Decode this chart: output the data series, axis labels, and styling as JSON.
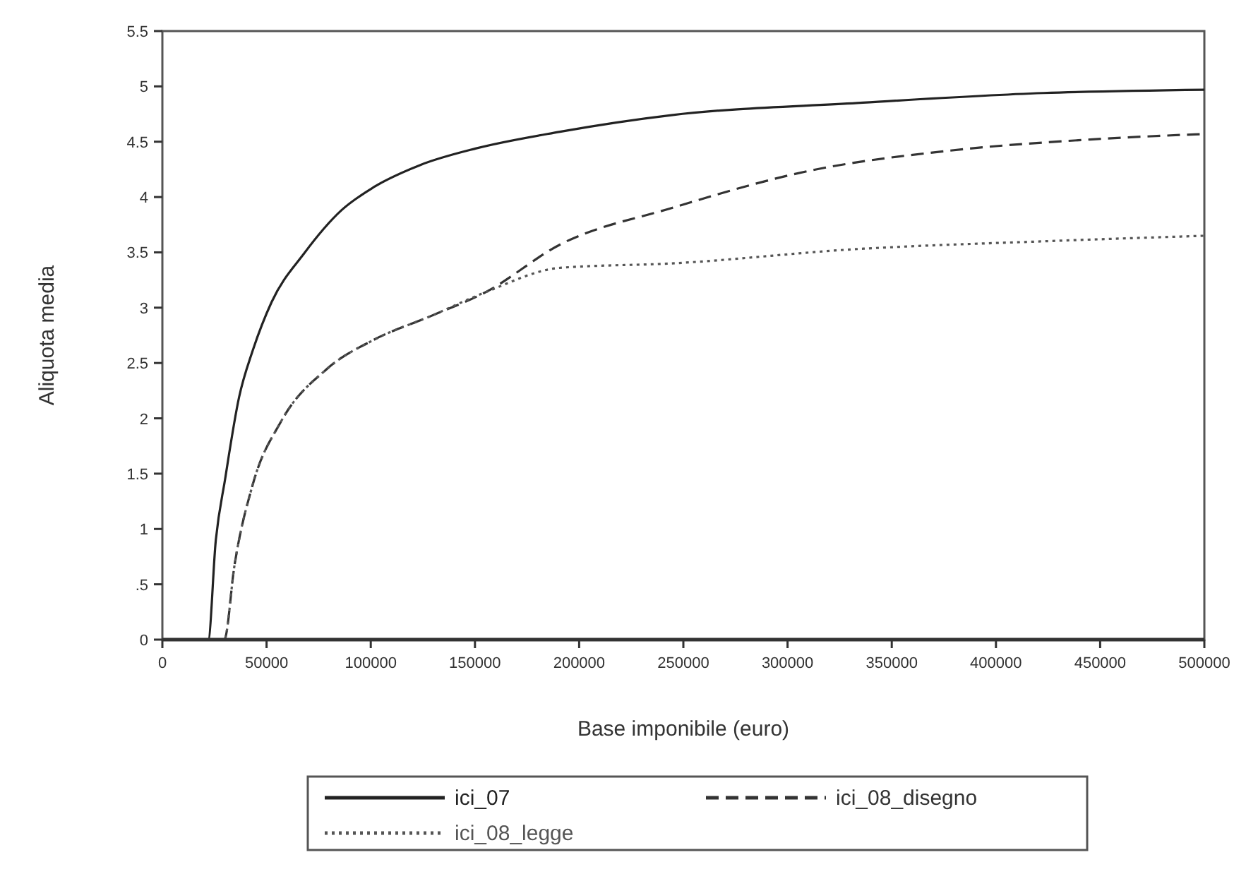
{
  "chart_data": {
    "type": "line",
    "xlabel": "Base imponibile (euro)",
    "ylabel": "Aliquota media",
    "xlim": [
      0,
      500000
    ],
    "xticks": [
      0,
      50000,
      100000,
      150000,
      200000,
      250000,
      300000,
      350000,
      400000,
      450000,
      500000
    ],
    "ylim": [
      0,
      5.5
    ],
    "yticks": [
      0,
      {
        "value": 0.5,
        "label": ".5"
      },
      1,
      1.5,
      2,
      2.5,
      3,
      3.5,
      4,
      4.5,
      5,
      5.5
    ],
    "grid": false,
    "legend": "bottom",
    "series": [
      {
        "name": "ici_07",
        "color": "#222222",
        "line_style": "solid",
        "x": [
          0,
          22000,
          25600,
          30100,
          36800,
          43500,
          52400,
          68000,
          85900,
          101500,
          123800,
          150600,
          190800,
          244300,
          333500,
          422800,
          500000
        ],
        "values": [
          0,
          0,
          0.89,
          1.45,
          2.19,
          2.62,
          3.05,
          3.49,
          3.88,
          4.09,
          4.29,
          4.44,
          4.59,
          4.74,
          4.85,
          4.94,
          4.97
        ]
      },
      {
        "name": "ici_08_disegno",
        "color": "#333333",
        "line_style": "dashed",
        "x": [
          0,
          29700,
          34600,
          43500,
          56900,
          79200,
          101500,
          128300,
          155100,
          190800,
          244300,
          311200,
          378200,
          445200,
          500000
        ],
        "values": [
          0,
          0,
          0.67,
          1.41,
          1.97,
          2.45,
          2.71,
          2.92,
          3.14,
          3.57,
          3.9,
          4.24,
          4.42,
          4.52,
          4.57
        ]
      },
      {
        "name": "ici_08_legge",
        "color": "#555555",
        "line_style": "dotted",
        "x": [
          0,
          29700,
          34600,
          43500,
          56900,
          79200,
          101500,
          128300,
          155100,
          190800,
          244300,
          333500,
          422800,
          500000
        ],
        "values": [
          0,
          0,
          0.67,
          1.41,
          1.97,
          2.45,
          2.71,
          2.92,
          3.14,
          3.36,
          3.4,
          3.53,
          3.6,
          3.65
        ]
      }
    ]
  }
}
